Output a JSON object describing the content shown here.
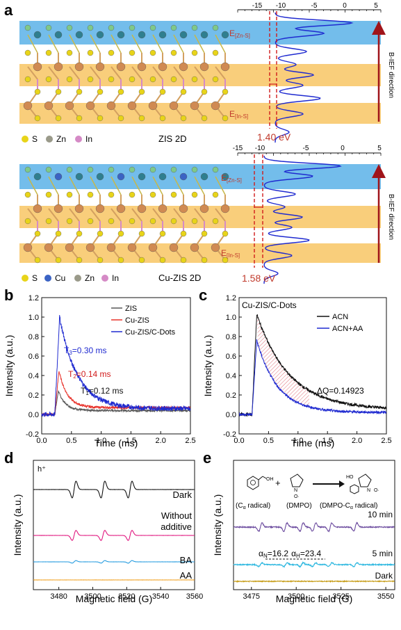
{
  "panel_a": {
    "label": "a",
    "top": {
      "axis_ticks": [
        "-15",
        "-10",
        "-5",
        "0",
        "5"
      ],
      "band_top_label_main": "E",
      "band_top_label_sub": "[Zn-S]",
      "band_bottom_label_main": "E",
      "band_bottom_label_sub": "[In-S]",
      "gap_value": "1.40 eV",
      "field_label": "B-IEF direction",
      "legend": [
        "S",
        "Zn",
        "In"
      ],
      "material": "ZIS 2D"
    },
    "bottom": {
      "axis_ticks": [
        "-15",
        "-10",
        "-5",
        "0",
        "5"
      ],
      "band_top_label_main": "E",
      "band_top_label_sub": "[Zn-S]",
      "band_bottom_label_main": "E",
      "band_bottom_label_sub": "[In-S]",
      "gap_value": "1.58 eV",
      "field_label": "B-IEF direction",
      "legend": [
        "S",
        "Cu",
        "Zn",
        "In"
      ],
      "material": "Cu-ZIS 2D"
    },
    "colors": {
      "S": "#e8d419",
      "Zn": "#9a9a8a",
      "In": "#d58ac6",
      "Cu": "#3b63c4",
      "band": "#5ab2e8",
      "layer": "#f7c25a",
      "dos": "#1f2ad0",
      "accent": "#c0392b"
    }
  },
  "panel_b": {
    "label": "b",
    "xlabel": "Time (ms)",
    "ylabel": "Intensity (a.u.)",
    "legend": [
      "ZIS",
      "Cu-ZIS",
      "Cu-ZIS/C-Dots"
    ],
    "annotations": [
      {
        "main": "T",
        "sub": "3",
        "rest": "=0.30 ms",
        "color": "#1f2ad0"
      },
      {
        "main": "T",
        "sub": "2",
        "rest": "=0.14 ms",
        "color": "#d11b1b"
      },
      {
        "main": "T",
        "sub": "1",
        "rest": "=0.12 ms",
        "color": "#111111"
      }
    ]
  },
  "panel_c": {
    "label": "c",
    "xlabel": "Time (ms)",
    "ylabel": "Intensity (a.u.)",
    "inner_title": "Cu-ZIS/C-Dots",
    "legend": [
      "ACN",
      "ACN+AA"
    ],
    "annotation": "ΔQ=0.14923"
  },
  "panel_d": {
    "label": "d",
    "xlabel": "Magnetic field (G)",
    "ylabel": "Intensity (a.u.)",
    "corner": "h⁺",
    "traces": [
      "Dark",
      "Without",
      "additive",
      "BA",
      "AA"
    ]
  },
  "panel_e": {
    "label": "e",
    "xlabel": "Magnetic field (G)",
    "ylabel": "Intensity (a.u.)",
    "traces": [
      "10 min",
      "5 min",
      "Dark"
    ],
    "hfs_main_n": "α",
    "hfs_sub_n": "N",
    "hfs_val_n": "=16.2",
    "hfs_main_h": "α",
    "hfs_sub_h": "H",
    "hfs_val_h": "=23.4",
    "scheme_labels": [
      "(C",
      "α",
      " radical)",
      "(DMPO)",
      "(DMPO-C",
      "α",
      " radical)"
    ],
    "scheme_plus": "+",
    "mol_labels": {
      "oh1": "OH",
      "ho2": "HO",
      "n2": "N",
      "o_dot": "O·",
      "n3": "N",
      "o_dot3": "O·"
    }
  },
  "chart_data": [
    {
      "type": "line",
      "panel": "b",
      "xlabel": "Time (ms)",
      "ylabel": "Intensity (a.u.)",
      "xlim": [
        0,
        2.5
      ],
      "ylim": [
        -0.2,
        1.2
      ],
      "xticks": [
        "0.0",
        "0.5",
        "1.0",
        "1.5",
        "2.0",
        "2.5"
      ],
      "yticks": [
        "-0.2",
        "0.0",
        "0.2",
        "0.4",
        "0.6",
        "0.8",
        "1.0",
        "1.2"
      ],
      "series": [
        {
          "name": "ZIS",
          "color": "#555555",
          "peak_x": 0.28,
          "peak": 0.24,
          "tau": 0.12,
          "tail": 0.04,
          "noise": 0.01
        },
        {
          "name": "Cu-ZIS",
          "color": "#e8322b",
          "peak_x": 0.29,
          "peak": 0.45,
          "tau": 0.14,
          "tail": 0.07,
          "noise": 0.012
        },
        {
          "name": "Cu-ZIS/C-Dots",
          "color": "#1f2ad0",
          "peak_x": 0.3,
          "peak": 1.0,
          "tau": 0.3,
          "tail": 0.06,
          "noise": 0.025
        }
      ]
    },
    {
      "type": "line",
      "panel": "c",
      "xlabel": "Time (ms)",
      "ylabel": "Intensity (a.u.)",
      "xlim": [
        0,
        2.5
      ],
      "ylim": [
        -0.2,
        1.2
      ],
      "xticks": [
        "0.0",
        "0.5",
        "1.0",
        "1.5",
        "2.0",
        "2.5"
      ],
      "yticks": [
        "-0.2",
        "0.0",
        "0.2",
        "0.4",
        "0.6",
        "0.8",
        "1.0",
        "1.2"
      ],
      "series": [
        {
          "name": "ACN",
          "color": "#111111",
          "peak_x": 0.3,
          "peak": 1.03,
          "tau": 0.55,
          "tail": 0.05,
          "noise": 0.015
        },
        {
          "name": "ACN+AA",
          "color": "#1f2ad0",
          "peak_x": 0.3,
          "peak": 0.76,
          "tau": 0.35,
          "tail": 0.02,
          "noise": 0.012
        }
      ]
    },
    {
      "type": "line",
      "panel": "d",
      "xlabel": "Magnetic field (G)",
      "ylabel": "Intensity (a.u.)",
      "xlim": [
        3465,
        3560
      ],
      "xticks": [
        "3480",
        "3500",
        "3520",
        "3540",
        "3560"
      ],
      "series": [
        {
          "name": "Dark",
          "color": "#111111",
          "amp": 1.0
        },
        {
          "name": "Without additive",
          "color": "#e0177f",
          "amp": 0.6
        },
        {
          "name": "BA",
          "color": "#2a9ee0",
          "amp": 0.15
        },
        {
          "name": "AA",
          "color": "#f0a020",
          "amp": 0.0
        }
      ],
      "line_positions": [
        3489,
        3506,
        3522
      ]
    },
    {
      "type": "line",
      "panel": "e",
      "xlabel": "Magnetic field (G)",
      "ylabel": "Intensity (a.u.)",
      "xlim": [
        3465,
        3555
      ],
      "xticks": [
        "3475",
        "3500",
        "3525",
        "3550"
      ],
      "series": [
        {
          "name": "10 min",
          "color": "#6e4ea0",
          "amp": 1.0
        },
        {
          "name": "5 min",
          "color": "#2eb8e0",
          "amp": 0.45
        },
        {
          "name": "Dark",
          "color": "#c8a020",
          "amp": 0.0
        }
      ],
      "line_positions": [
        3480,
        3494,
        3503,
        3510,
        3519,
        3533
      ]
    }
  ]
}
